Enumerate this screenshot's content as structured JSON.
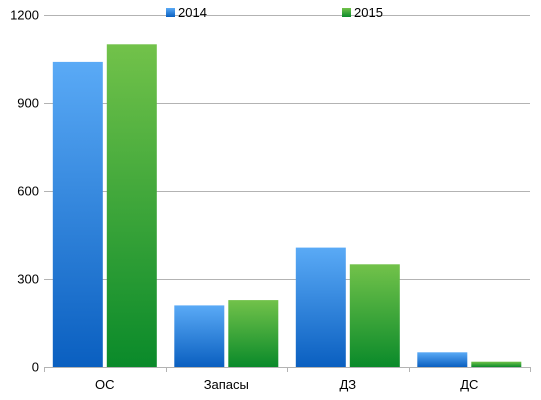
{
  "chart_data": {
    "type": "bar",
    "title": "",
    "xlabel": "",
    "ylabel": "",
    "categories": [
      "ОС",
      "Запасы",
      "ДЗ",
      "ДС"
    ],
    "series": [
      {
        "name": "2014",
        "values": [
          1040,
          210,
          407,
          50
        ]
      },
      {
        "name": "2015",
        "values": [
          1100,
          228,
          350,
          18
        ]
      }
    ],
    "ylim": [
      0,
      1200
    ],
    "yticks": [
      "0",
      "300",
      "600",
      "900",
      "1200"
    ],
    "grid": true,
    "legend_position": "top",
    "colors": {
      "2014": {
        "top": "#5aaaf6",
        "bottom": "#0a5fc0"
      },
      "2015": {
        "top": "#72c24a",
        "bottom": "#0a8a2a"
      },
      "grid": "#b3b3b3"
    }
  }
}
